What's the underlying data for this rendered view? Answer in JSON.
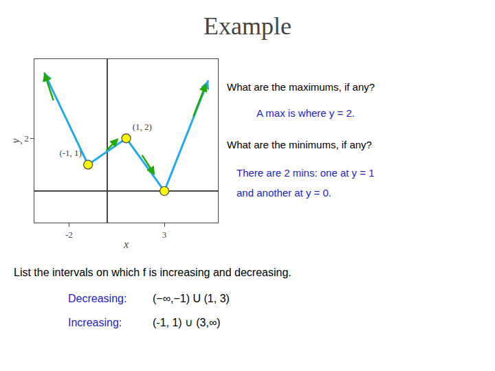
{
  "chart_data": {
    "type": "line",
    "title": "Example",
    "x_label": "x",
    "y_label": "y",
    "xlim": [
      -3.8,
      5.8
    ],
    "ylim": [
      -1.2,
      5.0
    ],
    "xticks": [
      -2,
      3
    ],
    "yticks": [
      2
    ],
    "grid": false,
    "series": [
      {
        "type": "line",
        "color": "#22aaee",
        "x": [
          -3.3,
          -1,
          1,
          3,
          5.3
        ],
        "values": [
          4.5,
          1,
          2,
          0,
          4.2
        ]
      },
      {
        "type": "scatter",
        "marker": "circle",
        "color": "#ffff00",
        "x": [
          -1,
          1,
          3
        ],
        "values": [
          1,
          2,
          0
        ],
        "data_labels": true,
        "value_labels": [
          "(-1, 1)",
          "(1, 2)",
          null
        ]
      },
      {
        "type": "arrow",
        "color": "#22aa00",
        "tails": [
          [
            -2.8,
            3.4
          ],
          [
            -0.1,
            1.5
          ],
          [
            1.8,
            1.4
          ],
          [
            4.5,
            2.8
          ]
        ],
        "heads": [
          [
            -3.3,
            4.5
          ],
          [
            0.6,
            2.0
          ],
          [
            2.5,
            0.6
          ],
          [
            5.2,
            4.1
          ]
        ]
      }
    ],
    "annotations": [
      {
        "text": "What are the maximums, if any?",
        "color": "#000000"
      },
      {
        "text": "A max is where y = 2.",
        "color": "#2222cc"
      },
      {
        "text": "What are the minimums, if any?",
        "color": "#000000"
      },
      {
        "text": "There are 2 mins: one at y = 1",
        "color": "#2222cc"
      },
      {
        "text": "and another at y = 0.",
        "color": "#2222cc"
      },
      {
        "text": "List the intervals on which f is increasing and decreasing.",
        "color": "#000000"
      },
      {
        "text": "Decreasing:",
        "color": "#2222cc"
      },
      {
        "text": "(−∞,−1) U (1, 3)",
        "color": "#000000"
      },
      {
        "text": "Increasing:",
        "color": "#2222cc"
      },
      {
        "text": "(-1, 1) ∪ (3,∞)",
        "color": "#000000"
      }
    ]
  }
}
